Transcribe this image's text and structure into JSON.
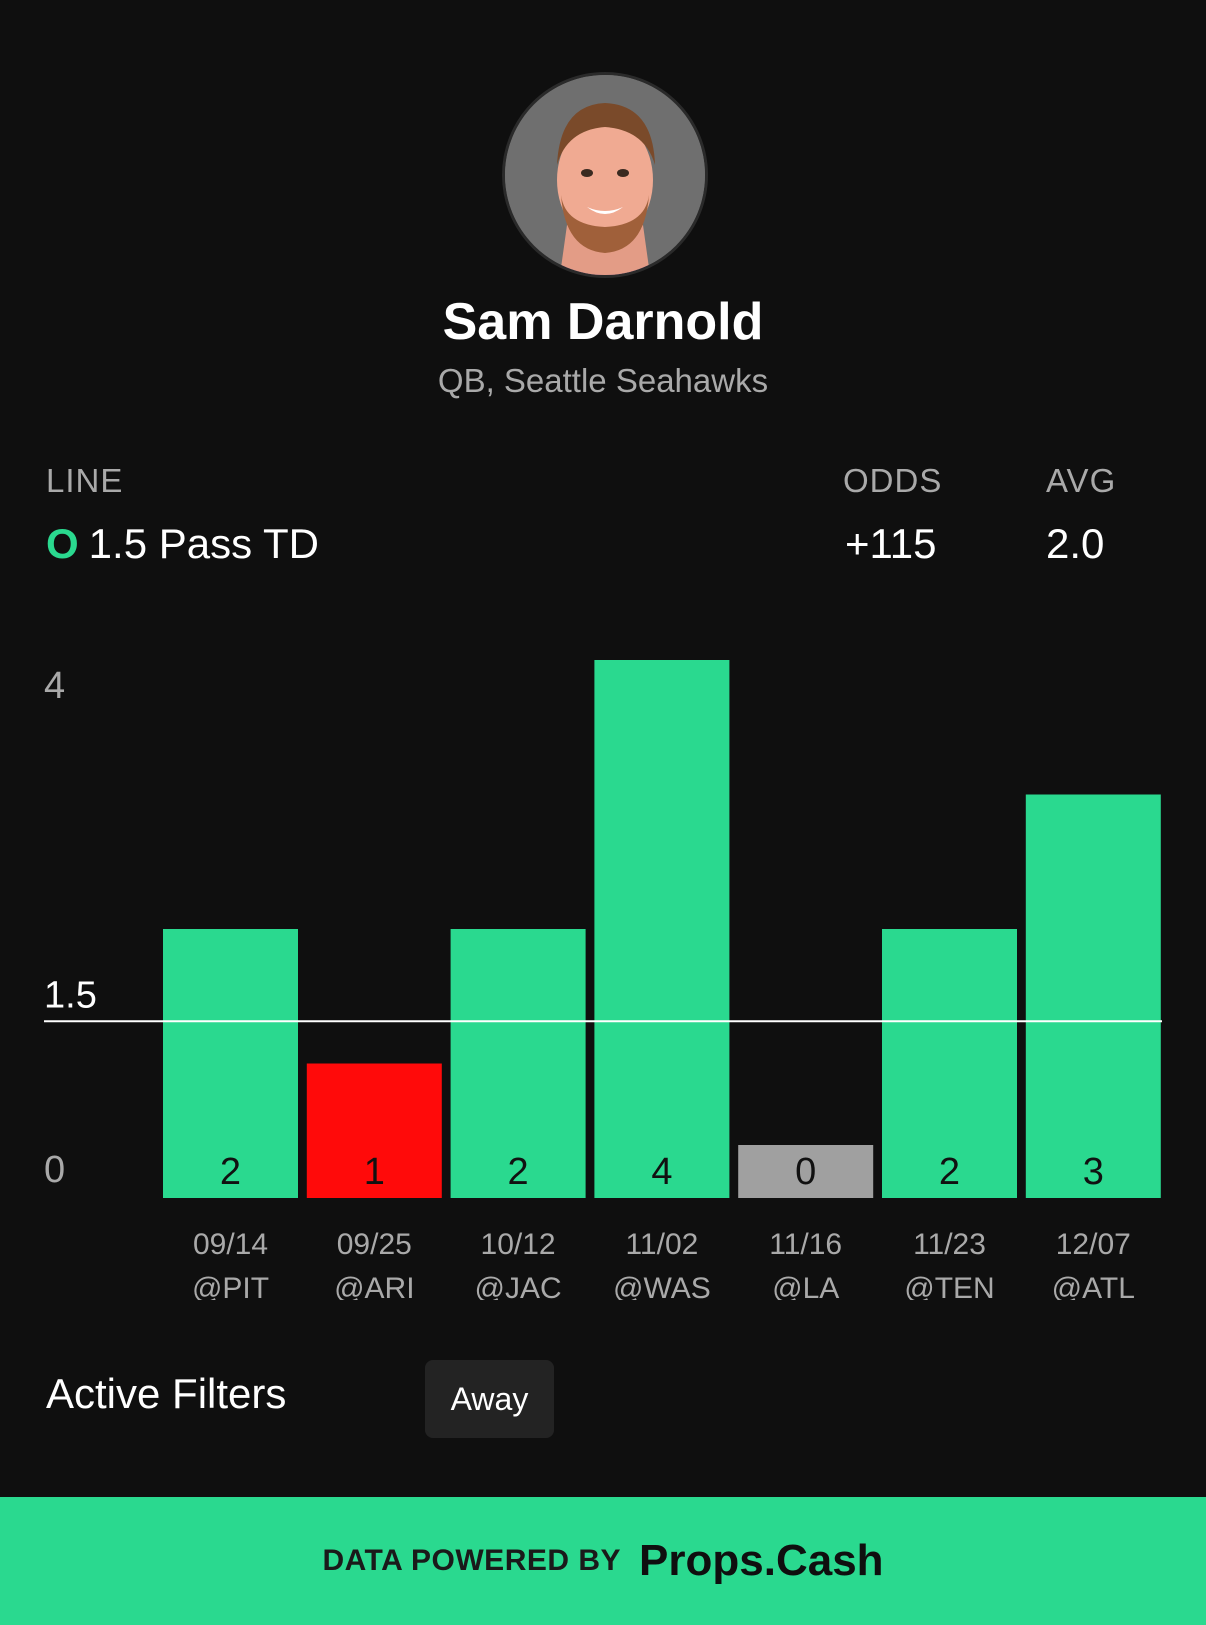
{
  "player": {
    "name": "Sam Darnold",
    "subtitle": "QB, Seattle Seahawks"
  },
  "stats": {
    "line_label": "LINE",
    "line_direction": "O",
    "line_value": "1.5 Pass TD",
    "odds_label": "ODDS",
    "odds_value": "+115",
    "avg_label": "AVG",
    "avg_value": "2.0"
  },
  "chart_data": {
    "type": "bar",
    "title": "",
    "xlabel": "",
    "ylabel": "",
    "ylim": [
      0,
      4
    ],
    "y_ticks": [
      "0",
      "1.5",
      "4"
    ],
    "threshold": 1.5,
    "categories": [
      {
        "date": "09/14",
        "opponent": "@PIT"
      },
      {
        "date": "09/25",
        "opponent": "@ARI"
      },
      {
        "date": "10/12",
        "opponent": "@JAC"
      },
      {
        "date": "11/02",
        "opponent": "@WAS"
      },
      {
        "date": "11/16",
        "opponent": "@LA"
      },
      {
        "date": "11/23",
        "opponent": "@TEN"
      },
      {
        "date": "12/07",
        "opponent": "@ATL"
      }
    ],
    "values": [
      2,
      1,
      2,
      4,
      0,
      2,
      3
    ],
    "colors": {
      "over": "#2ad98f",
      "under": "#ff0a0a",
      "zero": "#a0a0a0",
      "line": "#ffffff",
      "axis_text": "#a9a9a9",
      "bar_text": "#111111"
    }
  },
  "filters": {
    "title": "Active Filters",
    "chips": [
      "Away"
    ]
  },
  "footer": {
    "label": "DATA POWERED BY",
    "brand": "Props.Cash"
  }
}
